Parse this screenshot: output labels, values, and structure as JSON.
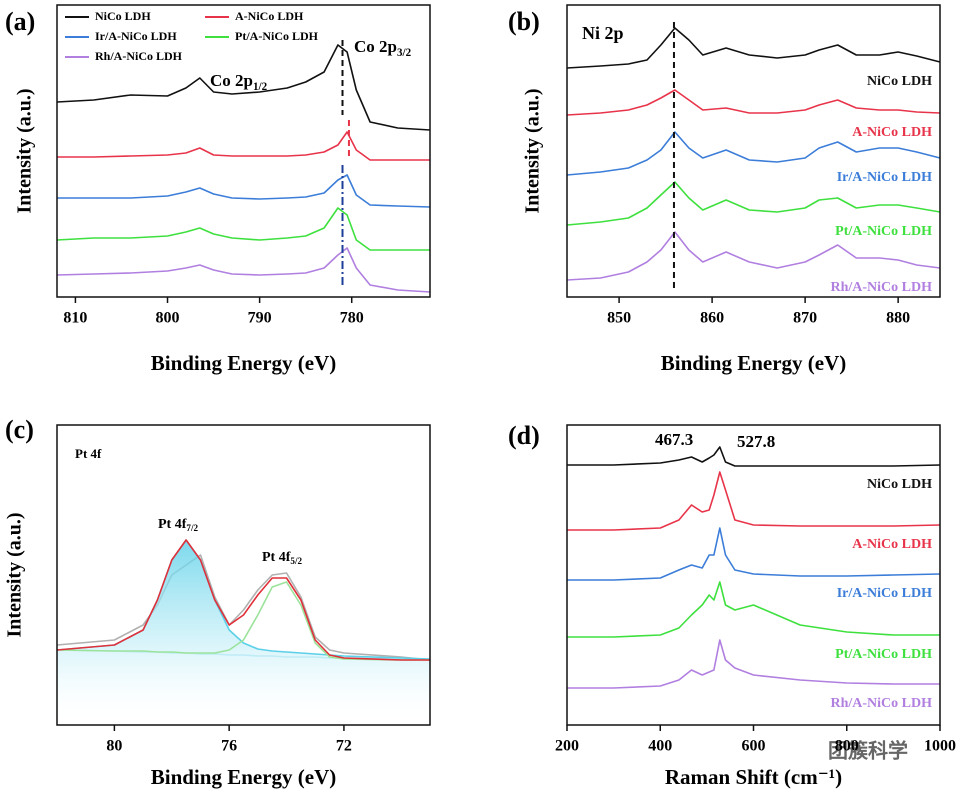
{
  "chart_data": [
    {
      "type": "line",
      "panel_label": "(a)",
      "xlabel": "Binding Energy (eV)",
      "ylabel": "Intensity (a.u.)",
      "xlim": [
        812,
        771.5
      ],
      "xticks": [
        810,
        800,
        790,
        780
      ],
      "ylim": [
        0,
        292
      ],
      "legend": "upper-left",
      "x": [
        812,
        808,
        804,
        800,
        798,
        796.5,
        795,
        793,
        790,
        787,
        785,
        783,
        781.5,
        780.5,
        779.5,
        778,
        775,
        771.5
      ],
      "series": [
        {
          "name": "NiCo LDH",
          "color": "#111111",
          "values": [
            195,
            197,
            202,
            201,
            209,
            219,
            205,
            203,
            205,
            209,
            215,
            225,
            252,
            245,
            207,
            175,
            169,
            167
          ]
        },
        {
          "name": "A-NiCo LDH",
          "color": "#e8344a",
          "values": [
            140,
            140,
            141,
            142,
            144,
            149,
            142,
            141,
            141,
            141,
            142,
            145,
            152,
            165,
            147,
            137,
            137,
            137
          ]
        },
        {
          "name": "Ir/A-NiCo LDH",
          "color": "#3b7dd8",
          "values": [
            99,
            99,
            99,
            101,
            105,
            109,
            103,
            99,
            98,
            99,
            100,
            104,
            117,
            122,
            102,
            92,
            91,
            90
          ]
        },
        {
          "name": "Pt/A-NiCo LDH",
          "color": "#3ee03e",
          "values": [
            57,
            59,
            59,
            61,
            65,
            69,
            63,
            59,
            57,
            59,
            61,
            69,
            89,
            82,
            57,
            47,
            47,
            47
          ]
        },
        {
          "name": "Rh/A-NiCo LDH",
          "color": "#b07fe0",
          "values": [
            22,
            23,
            24,
            26,
            29,
            32,
            27,
            23,
            22,
            23,
            24,
            29,
            42,
            49,
            29,
            12,
            7,
            5
          ]
        }
      ],
      "reference_lines": [
        {
          "x": 781,
          "y": [
            257,
            182
          ],
          "color": "#111111"
        },
        {
          "x": 780.3,
          "y": [
            177,
            137
          ],
          "color": "#e8344a"
        },
        {
          "x": 781,
          "y": [
            132,
            10
          ],
          "color": "#1f3f9a"
        }
      ],
      "annotations": [
        {
          "text": "Co 2p",
          "sub": "1/2"
        },
        {
          "text": "Co 2p",
          "sub": "3/2"
        }
      ]
    },
    {
      "type": "line",
      "panel_label": "(b)",
      "xlabel": "Binding Energy (eV)",
      "ylabel": "Intensity (a.u.)",
      "xlim": [
        844.4,
        884.5
      ],
      "xticks": [
        850,
        860,
        870,
        880
      ],
      "ylim": [
        0,
        292
      ],
      "legend": "curve-labels",
      "x": [
        844.4,
        848,
        851,
        853,
        854.5,
        856,
        857.5,
        859,
        861.5,
        864,
        867,
        870,
        871.5,
        873.5,
        875.5,
        878,
        880,
        882,
        884.5
      ],
      "series": [
        {
          "name": "NiCo LDH",
          "color": "#111111",
          "values": [
            229,
            231,
            233,
            237,
            252,
            269,
            257,
            242,
            249,
            242,
            239,
            242,
            247,
            252,
            242,
            242,
            245,
            241,
            235
          ]
        },
        {
          "name": "A-NiCo LDH",
          "color": "#e8344a",
          "values": [
            182,
            184,
            187,
            192,
            199,
            207,
            197,
            187,
            189,
            184,
            184,
            187,
            192,
            197,
            189,
            187,
            187,
            185,
            184
          ]
        },
        {
          "name": "Ir/A-NiCo LDH",
          "color": "#3b7dd8",
          "values": [
            122,
            125,
            129,
            137,
            147,
            165,
            149,
            139,
            147,
            137,
            135,
            139,
            149,
            155,
            145,
            149,
            149,
            145,
            139
          ]
        },
        {
          "name": "Pt/A-NiCo LDH",
          "color": "#3ee03e",
          "values": [
            72,
            75,
            79,
            89,
            102,
            115,
            99,
            87,
            97,
            87,
            85,
            89,
            97,
            99,
            89,
            92,
            92,
            89,
            85
          ]
        },
        {
          "name": "Rh/A-NiCo LDH",
          "color": "#b07fe0",
          "values": [
            17,
            19,
            25,
            35,
            47,
            65,
            47,
            35,
            45,
            35,
            29,
            35,
            42,
            52,
            39,
            39,
            37,
            32,
            29
          ]
        }
      ],
      "reference_lines": [
        {
          "x": 855.9,
          "y": [
            275,
            5
          ],
          "color": "#111111"
        }
      ],
      "annotations": [
        {
          "text": "Ni 2p"
        }
      ]
    },
    {
      "type": "line",
      "panel_label": "(c)",
      "xlabel": "Binding Energy (eV)",
      "ylabel": "Intensity (a.u.)",
      "xlim": [
        82,
        69
      ],
      "xticks": [
        80,
        76,
        72
      ],
      "ylim": [
        0,
        300
      ],
      "x": [
        82,
        80,
        79,
        78.5,
        78,
        77.5,
        77,
        76.5,
        76,
        75.5,
        75,
        74.5,
        74,
        73.5,
        73,
        72.5,
        72,
        70,
        69
      ],
      "series": [
        {
          "color": "#b0b0b0",
          "values": [
            80,
            85,
            100,
            120,
            150,
            160,
            170,
            128,
            100,
            115,
            135,
            150,
            152,
            128,
            88,
            75,
            72,
            68,
            65
          ]
        },
        {
          "color": "#9fe0f0",
          "values": [
            75,
            74,
            73,
            73,
            72,
            72,
            71,
            71,
            70,
            70,
            69,
            69,
            68,
            68,
            68,
            67,
            67,
            66,
            65
          ]
        },
        {
          "color": "#5bd0e8",
          "fill": true,
          "values": [
            75,
            80,
            95,
            125,
            165,
            185,
            165,
            125,
            95,
            82,
            76,
            74,
            73,
            72,
            71,
            70,
            69,
            67,
            66
          ]
        },
        {
          "color": "#9be39b",
          "values": [
            75,
            74,
            74,
            73,
            73,
            72,
            72,
            72,
            75,
            85,
            110,
            138,
            143,
            120,
            82,
            68,
            66,
            65,
            65
          ]
        },
        {
          "color": "#e0303a",
          "values": [
            75,
            80,
            95,
            125,
            165,
            185,
            165,
            125,
            100,
            110,
            130,
            147,
            147,
            125,
            85,
            70,
            67,
            65,
            65
          ]
        }
      ],
      "annotations": [
        {
          "text": "Pt 4f"
        },
        {
          "text": "Pt 4f",
          "sub": "7/2"
        },
        {
          "text": "Pt 4f",
          "sub": "5/2"
        }
      ]
    },
    {
      "type": "line",
      "panel_label": "(d)",
      "xlabel": "Raman Shift (cm⁻¹)",
      "xlim": [
        200,
        1000
      ],
      "xticks": [
        200,
        400,
        600,
        800,
        1000
      ],
      "ylim": [
        0,
        300
      ],
      "legend": "curve-labels",
      "x": [
        200,
        300,
        400,
        440,
        467,
        490,
        505,
        515,
        527.8,
        540,
        560,
        600,
        700,
        800,
        900,
        1000
      ],
      "series": [
        {
          "name": "NiCo LDH",
          "color": "#111111",
          "values": [
            260,
            260,
            262,
            265,
            268,
            263,
            267,
            270,
            278,
            263,
            259,
            259,
            259,
            259,
            259,
            260
          ]
        },
        {
          "name": "A-NiCo LDH",
          "color": "#e8344a",
          "values": [
            195,
            195,
            197,
            205,
            220,
            213,
            215,
            230,
            253,
            235,
            205,
            200,
            199,
            199,
            199,
            200
          ]
        },
        {
          "name": "Ir/A-NiCo LDH",
          "color": "#3b7dd8",
          "values": [
            145,
            145,
            147,
            155,
            160,
            157,
            170,
            170,
            197,
            170,
            155,
            151,
            149,
            149,
            150,
            151
          ]
        },
        {
          "name": "Pt/A-NiCo LDH",
          "color": "#3ee03e",
          "values": [
            88,
            88,
            90,
            97,
            110,
            120,
            130,
            125,
            143,
            120,
            115,
            120,
            100,
            93,
            90,
            90
          ]
        },
        {
          "name": "Rh/A-NiCo LDH",
          "color": "#b07fe0",
          "values": [
            37,
            37,
            39,
            45,
            55,
            50,
            53,
            55,
            85,
            65,
            57,
            50,
            45,
            42,
            41,
            41
          ]
        }
      ],
      "annotations": [
        {
          "text": "467.3"
        },
        {
          "text": "527.8"
        }
      ]
    }
  ],
  "watermark": "团簇科学"
}
